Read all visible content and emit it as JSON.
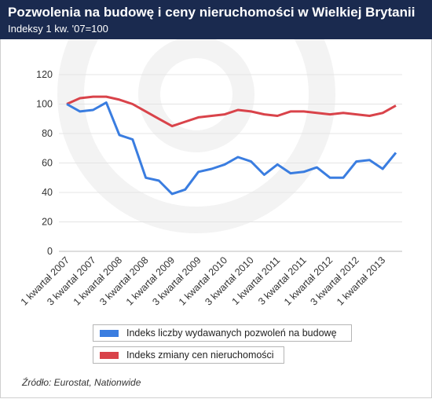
{
  "header": {
    "title": "Pozwolenia na budowę i ceny nieruchomości w Wielkiej Brytanii",
    "subtitle": "Indeksy 1 kw. '07=100"
  },
  "source": "Źródło: Eurostat, Nationwide",
  "colors": {
    "header_bg": "#1a2a4f",
    "series_permits": "#3a7de0",
    "series_prices": "#d9434a"
  },
  "chart_data": {
    "type": "line",
    "title": "Pozwolenia na budowę i ceny nieruchomości w Wielkiej Brytanii",
    "subtitle": "Indeksy 1 kw. '07=100",
    "ylim": [
      0,
      120
    ],
    "yticks": [
      0,
      20,
      40,
      60,
      80,
      100,
      120
    ],
    "grid": "horizontal",
    "legend_position": "bottom",
    "x_labels": [
      "1 kwartał 2007",
      "3 kwartał 2007",
      "1 kwartał 2008",
      "3 kwartał 2008",
      "1 kwartał 2009",
      "3 kwartał 2009",
      "1 kwartał 2010",
      "3 kwartał 2010",
      "1 kwartał 2011",
      "3 kwartał 2011",
      "1 kwartał 2012",
      "3 kwartał 2012",
      "1 kwartał 2013"
    ],
    "label_every": 2,
    "series": [
      {
        "name": "Indeks liczby wydawanych pozwoleń na budowę",
        "color": "#3a7de0",
        "values": [
          100,
          95,
          96,
          101,
          79,
          76,
          50,
          48,
          39,
          42,
          54,
          56,
          59,
          64,
          61,
          52,
          59,
          53,
          54,
          57,
          50,
          50,
          61,
          62,
          56,
          67
        ]
      },
      {
        "name": "Indeks zmiany cen nieruchomości",
        "color": "#d9434a",
        "values": [
          100,
          104,
          105,
          105,
          103,
          100,
          95,
          90,
          85,
          88,
          91,
          92,
          93,
          96,
          95,
          93,
          92,
          95,
          95,
          94,
          93,
          94,
          93,
          92,
          94,
          99
        ]
      }
    ]
  }
}
